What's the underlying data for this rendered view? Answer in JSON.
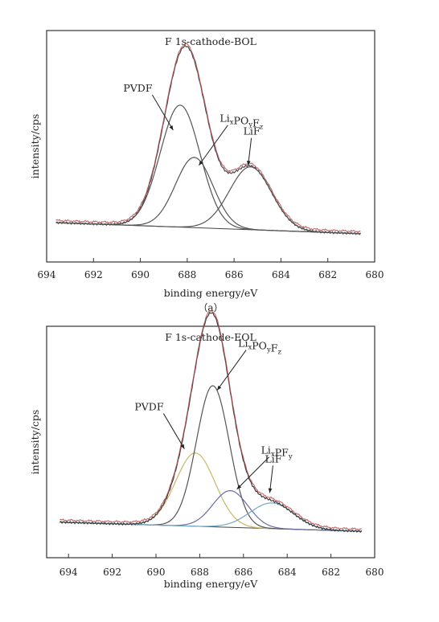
{
  "chart_data": [
    {
      "type": "line",
      "title": "F 1s-cathode-BOL",
      "xlabel": "binding energy/eV",
      "ylabel": "intensity/cps",
      "caption": "（a）",
      "xlim": [
        694,
        680
      ],
      "ylim": [
        0,
        100
      ],
      "x_ticks": [
        "694",
        "692",
        "690",
        "688",
        "686",
        "684",
        "682",
        "680"
      ],
      "grid": false,
      "baseline": {
        "x": [
          693.6,
          680.6
        ],
        "y": [
          10,
          4
        ]
      },
      "series": [
        {
          "color": "#4a4a4a",
          "shape": "sum",
          "peaks": [
            [
              688.3,
              66,
              0.85
            ],
            [
              687.7,
              38,
              0.8
            ],
            [
              685.3,
              34,
              0.9
            ]
          ]
        },
        {
          "color": "#555555",
          "shape": "single",
          "peaks": [
            [
              688.3,
              66,
              0.85
            ]
          ]
        },
        {
          "color": "#555555",
          "shape": "single",
          "peaks": [
            [
              687.7,
              38,
              0.8
            ]
          ]
        },
        {
          "color": "#555555",
          "shape": "single",
          "peaks": [
            [
              685.3,
              34,
              0.9
            ]
          ]
        },
        {
          "color": "#b34a4a",
          "shape": "envelope",
          "peaks": [
            [
              688.3,
              66,
              0.85
            ],
            [
              687.7,
              38,
              0.8
            ],
            [
              685.3,
              34,
              0.9
            ]
          ]
        }
      ],
      "annotations": [
        {
          "text": "PVDF",
          "sub": "",
          "x": 688.6,
          "y": 60
        },
        {
          "text": "Li",
          "sub": "x",
          "text2": "PO",
          "sub2": "y",
          "text3": "F",
          "sub3": "z",
          "x": 687.5,
          "y": 41
        },
        {
          "text": "LiF",
          "sub": "",
          "x": 685.4,
          "y": 41
        }
      ]
    },
    {
      "type": "line",
      "title": "F 1s-cathode-EOL",
      "xlabel": "binding energy/eV",
      "ylabel": "intensity/cps",
      "caption": "",
      "xlim": [
        695,
        680
      ],
      "ylim": [
        0,
        100
      ],
      "x_ticks": [
        "694",
        "692",
        "690",
        "688",
        "686",
        "684",
        "682",
        "680"
      ],
      "grid": false,
      "baseline": {
        "x": [
          694.4,
          680.6
        ],
        "y": [
          8,
          3
        ]
      },
      "series": [
        {
          "color": "#c9b76a",
          "shape": "single",
          "peaks": [
            [
              688.2,
              40,
              0.9
            ]
          ]
        },
        {
          "color": "#555555",
          "shape": "single",
          "peaks": [
            [
              687.4,
              77,
              0.75
            ]
          ]
        },
        {
          "color": "#6a6aa8",
          "shape": "single",
          "peaks": [
            [
              686.6,
              20,
              0.8
            ]
          ]
        },
        {
          "color": "#72a8c8",
          "shape": "single",
          "peaks": [
            [
              684.7,
              14,
              1.0
            ]
          ]
        },
        {
          "color": "#3a3a3a",
          "shape": "sum",
          "peaks": [
            [
              688.2,
              40,
              0.9
            ],
            [
              687.4,
              77,
              0.75
            ],
            [
              686.6,
              20,
              0.8
            ],
            [
              684.7,
              14,
              1.0
            ]
          ]
        },
        {
          "color": "#b34a4a",
          "shape": "envelope",
          "peaks": [
            [
              688.2,
              40,
              0.9
            ],
            [
              687.4,
              77,
              0.75
            ],
            [
              686.6,
              20,
              0.8
            ],
            [
              684.7,
              14,
              1.0
            ]
          ]
        }
      ],
      "annotations": [
        {
          "text": "PVDF",
          "sub": "",
          "x": 688.7,
          "y": 48
        },
        {
          "text": "Li",
          "sub": "x",
          "text2": "PO",
          "sub2": "y",
          "text3": "F",
          "sub3": "z",
          "x": 687.2,
          "y": 80
        },
        {
          "text": "Li",
          "sub": "x",
          "text2": "PF",
          "sub2": "y",
          "text3": "",
          "sub3": "",
          "x": 686.3,
          "y": 26
        },
        {
          "text": "LiF",
          "sub": "",
          "x": 684.8,
          "y": 24
        }
      ]
    }
  ]
}
